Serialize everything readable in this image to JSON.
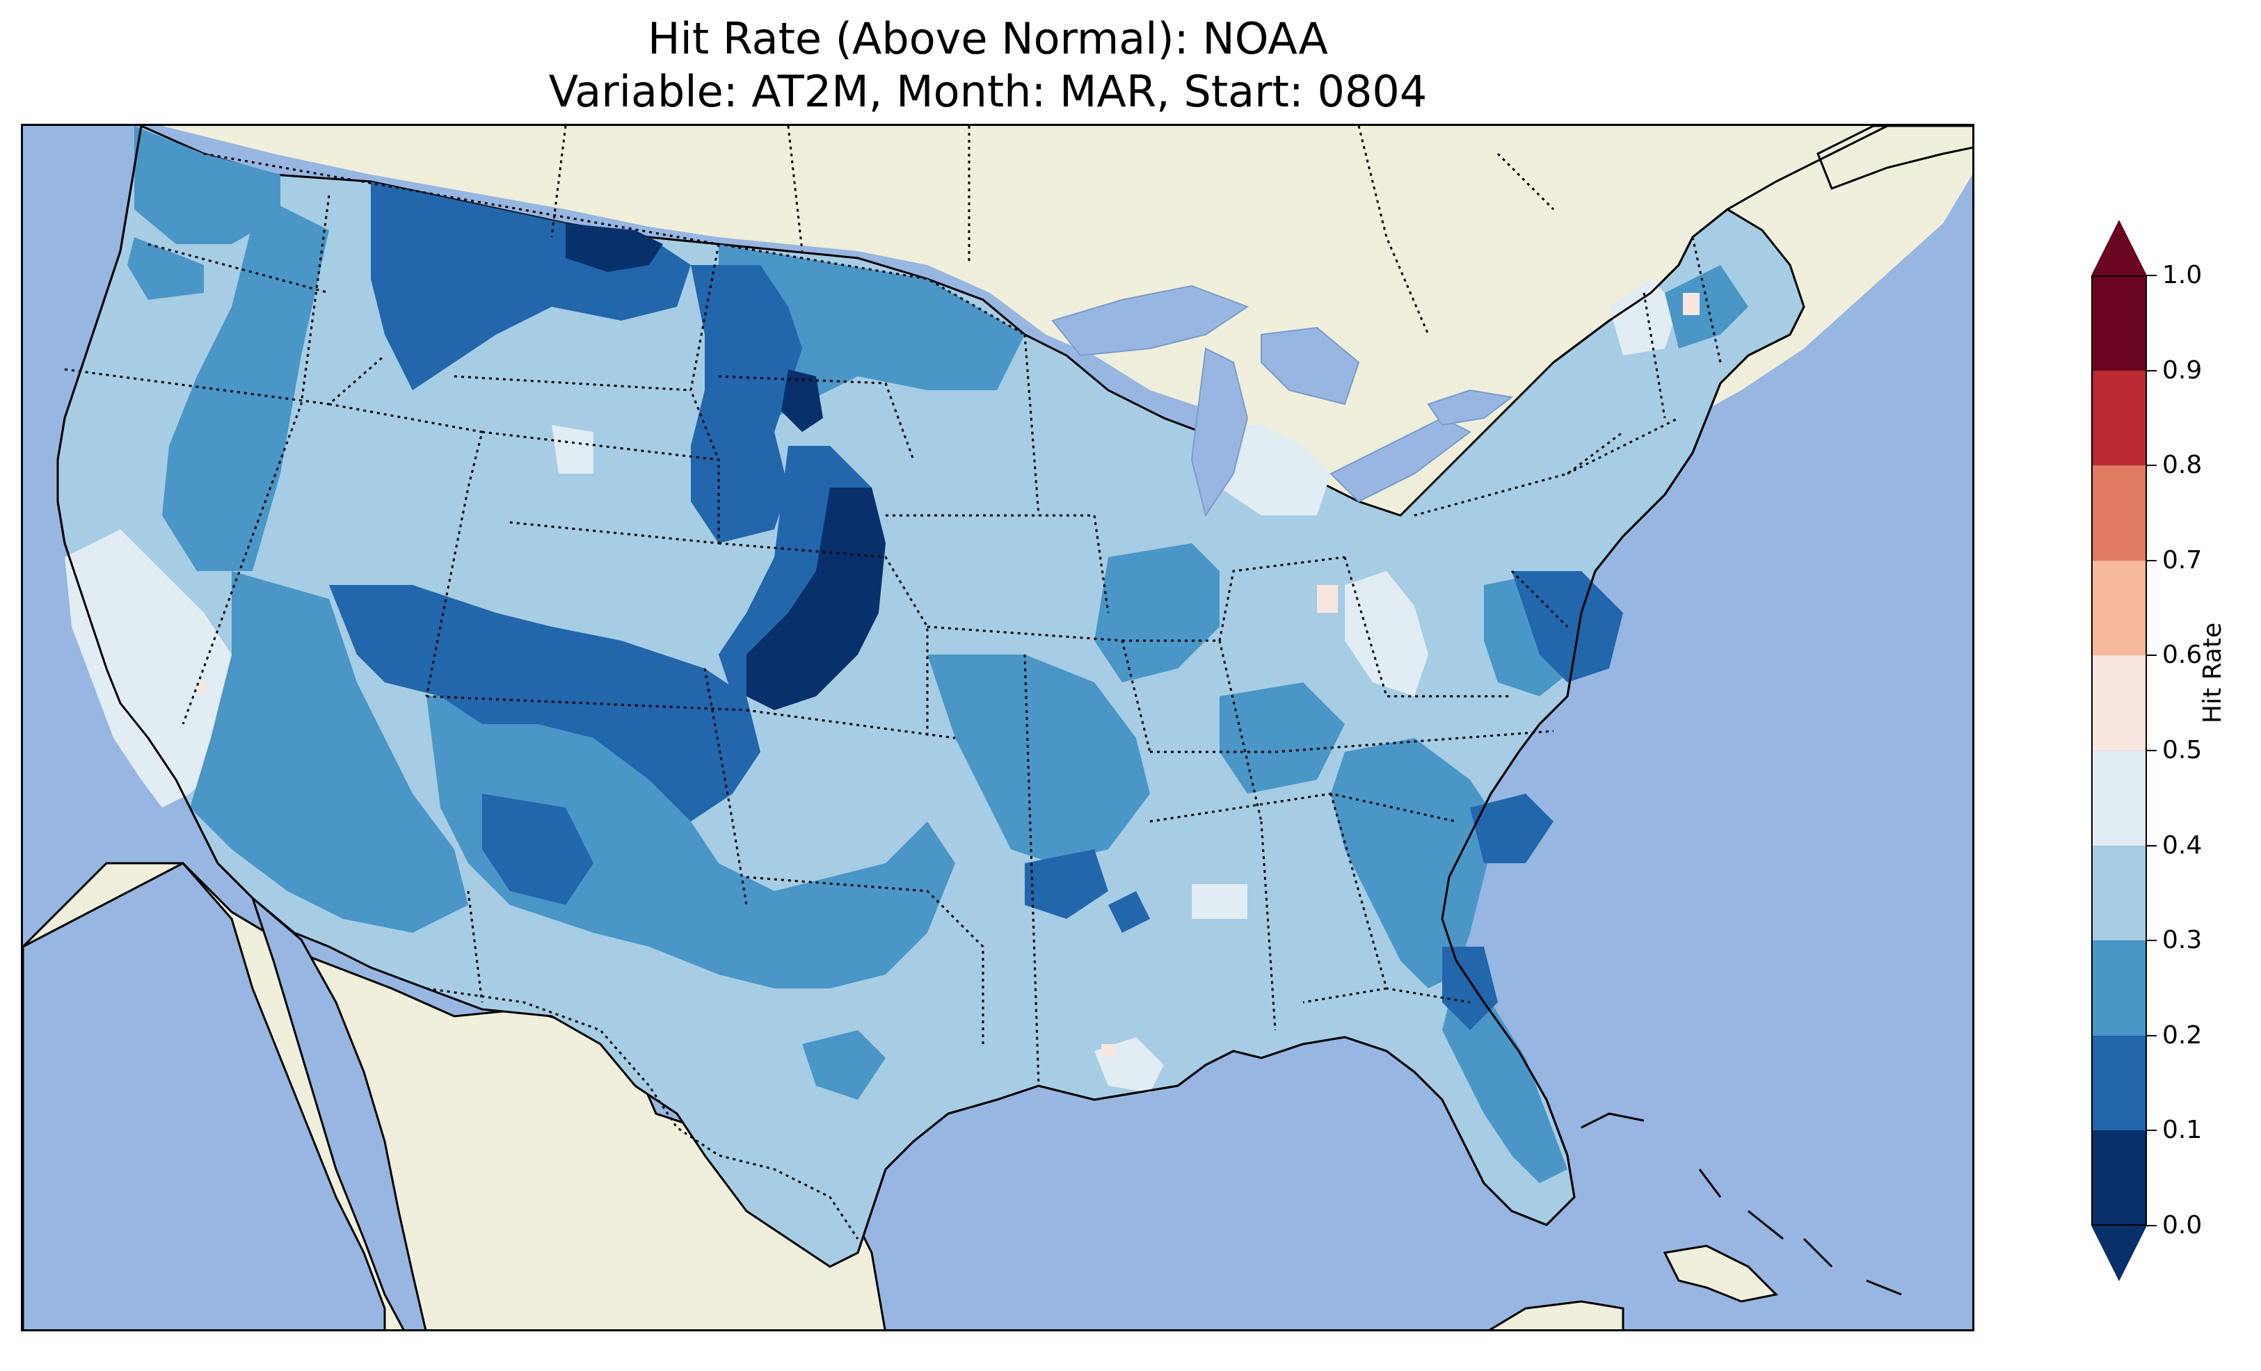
{
  "title": {
    "line1": "Hit Rate (Above Normal): NOAA",
    "line2": "Variable: AT2M, Month: MAR, Start: 0804"
  },
  "map": {
    "ocean_color": "#97b6e1",
    "land_color": "#efefdb",
    "lake_color": "#97b6e1"
  },
  "colorbar": {
    "label": "Hit Rate",
    "ticks": [
      "0.0",
      "0.1",
      "0.2",
      "0.3",
      "0.4",
      "0.5",
      "0.6",
      "0.7",
      "0.8",
      "0.9",
      "1.0"
    ],
    "colors": [
      "#053061",
      "#2166ac",
      "#4393c3",
      "#92c5de",
      "#d1e5f0",
      "#f7f7f7",
      "#fddbc7",
      "#f4a582",
      "#d6604d",
      "#b2182b",
      "#67001f"
    ],
    "bins": [
      {
        "range": [
          0.0,
          0.1
        ],
        "color": "#08306b"
      },
      {
        "range": [
          0.1,
          0.2
        ],
        "color": "#2266ac"
      },
      {
        "range": [
          0.2,
          0.3
        ],
        "color": "#4a96c7"
      },
      {
        "range": [
          0.3,
          0.4
        ],
        "color": "#a6cde4"
      },
      {
        "range": [
          0.4,
          0.5
        ],
        "color": "#e2ecf3"
      },
      {
        "range": [
          0.5,
          0.6
        ],
        "color": "#f8e6df"
      },
      {
        "range": [
          0.6,
          0.7
        ],
        "color": "#f6b99b"
      },
      {
        "range": [
          0.7,
          0.8
        ],
        "color": "#e07b62"
      },
      {
        "range": [
          0.8,
          0.9
        ],
        "color": "#bb2a33"
      },
      {
        "range": [
          0.9,
          1.0
        ],
        "color": "#6b0421"
      }
    ],
    "under_color": "#08306b",
    "over_color": "#6b0421"
  }
}
